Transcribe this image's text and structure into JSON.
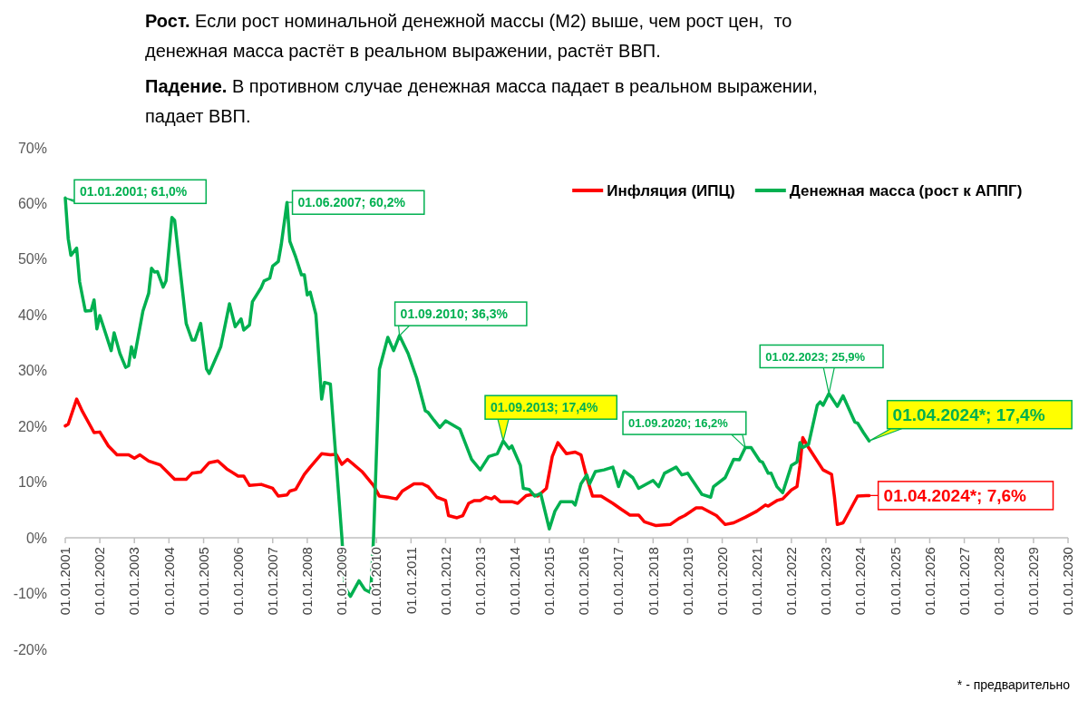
{
  "chart_data": {
    "type": "line",
    "title": "Рост. Если рост номинальной денежной массы (M2) выше, чем рост цен,  то денежная масса растёт в реальном выражении, растёт ВВП.",
    "subtitle": "Падение. В противном случае денежная масса падает в реальном выражении, падает ВВП.",
    "xlim": [
      "2001-01-01",
      "2030-01-01"
    ],
    "xticks": [
      {
        "value": "2001-01-01",
        "label": "01.01.2001"
      },
      {
        "value": "2002-01-01",
        "label": "01.01.2002"
      },
      {
        "value": "2003-01-01",
        "label": "01.01.2003"
      },
      {
        "value": "2004-01-01",
        "label": "01.01.2004"
      },
      {
        "value": "2005-01-01",
        "label": "01.01.2005"
      },
      {
        "value": "2006-01-01",
        "label": "01.01.2006"
      },
      {
        "value": "2007-01-01",
        "label": "01.01.2007"
      },
      {
        "value": "2008-01-01",
        "label": "01.01.2008"
      },
      {
        "value": "2009-01-01",
        "label": "01.01.2009"
      },
      {
        "value": "2010-01-01",
        "label": "01.01.2010"
      },
      {
        "value": "2011-01-01",
        "label": "01.01.2011"
      },
      {
        "value": "2012-01-01",
        "label": "01.01.2012"
      },
      {
        "value": "2013-01-01",
        "label": "01.01.2013"
      },
      {
        "value": "2014-01-01",
        "label": "01.01.2014"
      },
      {
        "value": "2015-01-01",
        "label": "01.01.2015"
      },
      {
        "value": "2016-01-01",
        "label": "01.01.2016"
      },
      {
        "value": "2017-01-01",
        "label": "01.01.2017"
      },
      {
        "value": "2018-01-01",
        "label": "01.01.2018"
      },
      {
        "value": "2019-01-01",
        "label": "01.01.2019"
      },
      {
        "value": "2020-01-01",
        "label": "01.01.2020"
      },
      {
        "value": "2021-01-01",
        "label": "01.01.2021"
      },
      {
        "value": "2022-01-01",
        "label": "01.01.2022"
      },
      {
        "value": "2023-01-01",
        "label": "01.01.2023"
      },
      {
        "value": "2024-01-01",
        "label": "01.01.2024"
      },
      {
        "value": "2025-01-01",
        "label": "01.01.2025"
      },
      {
        "value": "2026-01-01",
        "label": "01.01.2026"
      },
      {
        "value": "2027-01-01",
        "label": "01.01.2027"
      },
      {
        "value": "2028-01-01",
        "label": "01.01.2028"
      },
      {
        "value": "2029-01-01",
        "label": "01.01.2029"
      },
      {
        "value": "2030-01-01",
        "label": "01.01.2030"
      }
    ],
    "ylim": [
      -20,
      70
    ],
    "yticks": [
      {
        "value": -20,
        "label": "-20%"
      },
      {
        "value": -10,
        "label": "-10%"
      },
      {
        "value": 0,
        "label": "0%"
      },
      {
        "value": 10,
        "label": "10%"
      },
      {
        "value": 20,
        "label": "20%"
      },
      {
        "value": 30,
        "label": "30%"
      },
      {
        "value": 40,
        "label": "40%"
      },
      {
        "value": 50,
        "label": "50%"
      },
      {
        "value": 60,
        "label": "60%"
      },
      {
        "value": 70,
        "label": "70%"
      }
    ],
    "grid": false,
    "legend": "top right",
    "marker": "none",
    "line_style": "solid",
    "series": [
      {
        "name": "Инфляция (ИПЦ)",
        "color": "#ff0000",
        "x": [
          "2001-01",
          "2001-02",
          "2001-05",
          "2001-07",
          "2001-11",
          "2002-01",
          "2002-04",
          "2002-07",
          "2002-11",
          "2003-01",
          "2003-03",
          "2003-06",
          "2003-10",
          "2004-03",
          "2004-07",
          "2004-09",
          "2004-12",
          "2005-03",
          "2005-06",
          "2005-09",
          "2006-01",
          "2006-03",
          "2006-05",
          "2006-09",
          "2007-01",
          "2007-03",
          "2007-06",
          "2007-07",
          "2007-09",
          "2007-12",
          "2008-02",
          "2008-06",
          "2008-09",
          "2008-11",
          "2009-01",
          "2009-03",
          "2009-08",
          "2009-12",
          "2010-02",
          "2010-05",
          "2010-08",
          "2010-10",
          "2011-02",
          "2011-05",
          "2011-07",
          "2011-10",
          "2012-01",
          "2012-02",
          "2012-05",
          "2012-07",
          "2012-09",
          "2012-11",
          "2013-01",
          "2013-03",
          "2013-05",
          "2013-06",
          "2013-08",
          "2013-12",
          "2014-02",
          "2014-05",
          "2014-07",
          "2014-09",
          "2014-12",
          "2015-02",
          "2015-04",
          "2015-07",
          "2015-10",
          "2015-12",
          "2016-02",
          "2016-04",
          "2016-07",
          "2016-11",
          "2017-02",
          "2017-05",
          "2017-08",
          "2017-10",
          "2018-02",
          "2018-07",
          "2018-10",
          "2018-12",
          "2019-04",
          "2019-06",
          "2019-11",
          "2020-02",
          "2020-05",
          "2020-09",
          "2021-01",
          "2021-04",
          "2021-05",
          "2021-08",
          "2021-10",
          "2022-01",
          "2022-03",
          "2022-04",
          "2022-05",
          "2022-07",
          "2022-12",
          "2023-03",
          "2023-04",
          "2023-05",
          "2023-07",
          "2023-12",
          "2024-03",
          "2024-04"
        ],
        "values": [
          20.1,
          20.4,
          24.9,
          22.7,
          18.9,
          19,
          16.5,
          14.9,
          14.9,
          14.3,
          14.9,
          13.8,
          13.1,
          10.5,
          10.5,
          11.6,
          11.8,
          13.5,
          13.8,
          12.4,
          11.1,
          11.1,
          9.4,
          9.6,
          8.9,
          7.5,
          7.7,
          8.4,
          8.7,
          11.4,
          12.7,
          15.1,
          14.9,
          15,
          13.2,
          14.1,
          11.9,
          9.4,
          7.5,
          7.3,
          7,
          8.4,
          9.7,
          9.7,
          9.2,
          7.3,
          6.7,
          4,
          3.6,
          4,
          6.2,
          6.7,
          6.7,
          7.3,
          7,
          7.4,
          6.5,
          6.5,
          6.2,
          7.6,
          7.8,
          7.5,
          8.9,
          14.6,
          17.1,
          15.1,
          15.4,
          14.9,
          10.8,
          7.5,
          7.5,
          6.2,
          5.1,
          4.1,
          4.1,
          2.9,
          2.2,
          2.4,
          3.5,
          4,
          5.4,
          5.4,
          4,
          2.4,
          2.7,
          3.7,
          4.8,
          5.9,
          5.7,
          6.7,
          7,
          8.6,
          9.2,
          13,
          18,
          16.2,
          12.2,
          11.4,
          7.3,
          2.4,
          2.7,
          7.5,
          7.6,
          7.6
        ]
      },
      {
        "name": "Денежная масса (рост к АППГ)",
        "color": "#00b050",
        "x": [
          "2001-01",
          "2001-02",
          "2001-03",
          "2001-05",
          "2001-06",
          "2001-08",
          "2001-10",
          "2001-11",
          "2001-12",
          "2002-01",
          "2002-05",
          "2002-06",
          "2002-08",
          "2002-10",
          "2002-11",
          "2002-12",
          "2003-01",
          "2003-04",
          "2003-06",
          "2003-07",
          "2003-08",
          "2003-09",
          "2003-11",
          "2003-12",
          "2004-02",
          "2004-03",
          "2004-05",
          "2004-07",
          "2004-09",
          "2004-10",
          "2004-12",
          "2005-02",
          "2005-03",
          "2005-06",
          "2005-07",
          "2005-10",
          "2005-12",
          "2006-02",
          "2006-03",
          "2006-05",
          "2006-06",
          "2006-09",
          "2006-10",
          "2006-12",
          "2007-01",
          "2007-03",
          "2007-04",
          "2007-06",
          "2007-07",
          "2007-09",
          "2007-11",
          "2007-12",
          "2008-01",
          "2008-02",
          "2008-04",
          "2008-06",
          "2008-07",
          "2008-09",
          "2009-01",
          "2009-02",
          "2009-04",
          "2009-07",
          "2009-09",
          "2009-11",
          "2009-12",
          "2010-02",
          "2010-05",
          "2010-07",
          "2010-09",
          "2010-12",
          "2011-03",
          "2011-06",
          "2011-07",
          "2011-09",
          "2011-11",
          "2012-01",
          "2012-06",
          "2012-10",
          "2013-01",
          "2013-04",
          "2013-07",
          "2013-09",
          "2013-11",
          "2013-12",
          "2014-03",
          "2014-04",
          "2014-06",
          "2014-08",
          "2014-10",
          "2015-01",
          "2015-03",
          "2015-05",
          "2015-09",
          "2015-10",
          "2015-12",
          "2016-02",
          "2016-03",
          "2016-05",
          "2016-08",
          "2016-11",
          "2017-01",
          "2017-03",
          "2017-06",
          "2017-08",
          "2018-01",
          "2018-03",
          "2018-05",
          "2018-09",
          "2018-11",
          "2019-01",
          "2019-06",
          "2019-09",
          "2019-10",
          "2020-02",
          "2020-05",
          "2020-07",
          "2020-09",
          "2020-11",
          "2021-02",
          "2021-03",
          "2021-05",
          "2021-06",
          "2021-08",
          "2021-10",
          "2022-01",
          "2022-03",
          "2022-04",
          "2022-05",
          "2022-07",
          "2022-10",
          "2022-11",
          "2022-12",
          "2023-02",
          "2023-05",
          "2023-07",
          "2023-11",
          "2023-12",
          "2024-02",
          "2024-04"
        ],
        "values": [
          61.0,
          53.7,
          50.7,
          52,
          46,
          40.7,
          40.8,
          42.7,
          37.5,
          39.9,
          33.6,
          36.8,
          33.1,
          30.6,
          30.9,
          34.3,
          32.4,
          40.7,
          43.9,
          48.4,
          47.7,
          47.8,
          45,
          46.1,
          57.5,
          57,
          47.7,
          38.5,
          35.5,
          35.5,
          38.5,
          30.3,
          29.5,
          33.1,
          34.3,
          42,
          37.9,
          39.3,
          37.3,
          38.2,
          42.4,
          44.9,
          46.1,
          46.6,
          48.8,
          49.6,
          52.6,
          60.2,
          53.2,
          50.4,
          47.2,
          47.2,
          43.6,
          44.1,
          40.1,
          24.9,
          27.9,
          27.6,
          0,
          -8.9,
          -10.5,
          -7.7,
          -9.3,
          -9.8,
          0,
          30.3,
          36,
          33.6,
          36.3,
          33.1,
          28.7,
          22.8,
          22.5,
          21.1,
          19.8,
          21,
          19.5,
          14.1,
          12.2,
          14.6,
          15.1,
          17.4,
          16,
          16.5,
          13,
          8.9,
          8.7,
          7.5,
          8,
          1.6,
          4.8,
          6.5,
          6.5,
          5.9,
          9.7,
          11.3,
          9.7,
          11.9,
          12.2,
          12.7,
          9.2,
          12,
          10.8,
          8.9,
          10.3,
          9.2,
          11.6,
          12.7,
          11.3,
          11.6,
          7.8,
          7.3,
          9.2,
          10.8,
          14.1,
          14,
          16.2,
          16.2,
          13.8,
          13.6,
          11.6,
          11.6,
          9.2,
          8.1,
          13,
          13.6,
          17.1,
          16.2,
          16.8,
          23.8,
          24.4,
          23.8,
          25.9,
          23.6,
          25.5,
          20.8,
          20.6,
          18.9,
          17.4
        ]
      }
    ],
    "annotations": [
      {
        "text": "01.01.2001; 61,0%",
        "x": "2001-01",
        "y": 61.0
      },
      {
        "text": "01.06.2007; 60,2%",
        "x": "2007-06",
        "y": 60.2
      },
      {
        "text": "01.09.2010; 36,3%",
        "x": "2010-09",
        "y": 36.3
      },
      {
        "text": "01.09.2013; 17,4%",
        "x": "2013-09",
        "y": 17.4
      },
      {
        "text": "01.09.2020; 16,2%",
        "x": "2020-09",
        "y": 16.2
      },
      {
        "text": "01.02.2023; 25,9%",
        "x": "2023-02",
        "y": 25.9
      },
      {
        "text": "01.04.2024*; 17,4%",
        "x": "2024-04",
        "y": 17.4
      },
      {
        "text": "01.04.2024*; 7,6%",
        "x": "2024-04",
        "y": 7.6
      },
      "* - предварительно"
    ]
  }
}
